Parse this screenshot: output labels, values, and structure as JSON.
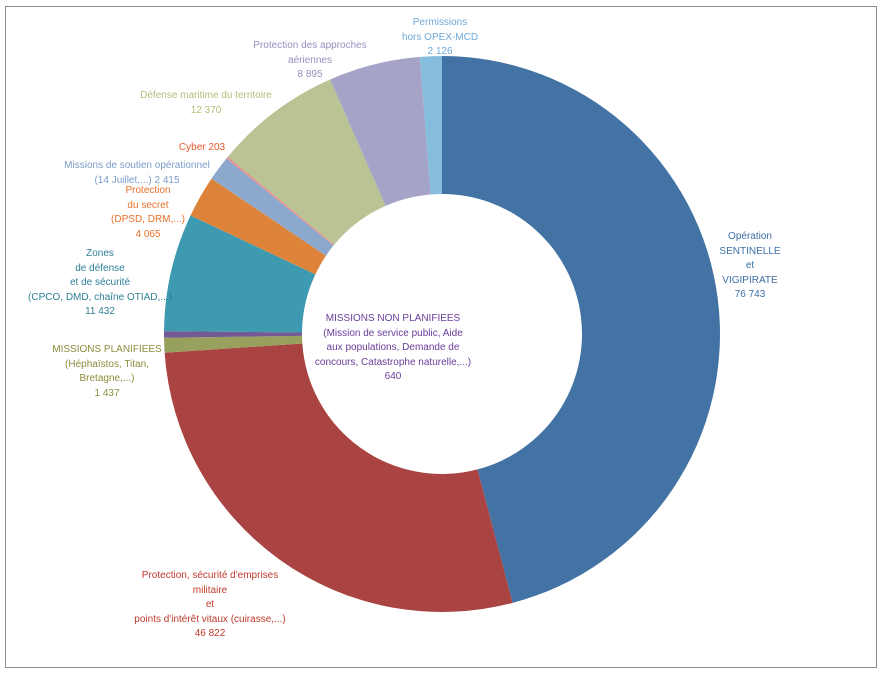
{
  "chart_data": {
    "type": "pie",
    "variant": "donut",
    "title": "",
    "legend": "none",
    "slices": [
      {
        "label": [
          "Opération",
          "SENTINELLE",
          "et",
          "VIGIPIRATE"
        ],
        "value": 76743,
        "value_text": "76 743",
        "color": "#4273A4",
        "text_color": "#3C6EA6"
      },
      {
        "label": [
          "Protection, sécurité  d'emprises",
          "militaire",
          "et",
          "points d'intérêt vitaux (cuirasse,...)"
        ],
        "value": 46822,
        "value_text": "46 822",
        "color": "#A94443",
        "text_color": "#C0392B"
      },
      {
        "label": [
          "MISSIONS PLANIFIEES",
          "(Héphaïstos, Titan,",
          "Bretagne,...)"
        ],
        "value": 1437,
        "value_text": "1 437",
        "color": "#98A05E",
        "text_color": "#8C8C3C"
      },
      {
        "label": [
          "MISSIONS NON PLANIFIEES",
          "(Mission de service public, Aide",
          "aux populations, Demande de",
          "concours, Catastrophe naturelle,...)"
        ],
        "value": 640,
        "value_text": "640",
        "color": "#735A94",
        "text_color": "#6A3D9A"
      },
      {
        "label": [
          "Zones",
          "de défense",
          "et de sécurité",
          "(CPCO, DMD, chaîne OTIAD,...)"
        ],
        "value": 11432,
        "value_text": "11 432",
        "color": "#3E9AB0",
        "text_color": "#2F7F96"
      },
      {
        "label": [
          "Protection",
          "du secret",
          "(DPSD, DRM,...)"
        ],
        "value": 4065,
        "value_text": "4 065",
        "color": "#DD843A",
        "text_color": "#E8702A"
      },
      {
        "label": [
          "Missions de soutien opérationnel",
          "(14 Juillet,...)"
        ],
        "value": 2415,
        "value_text": "2 415",
        "color": "#8CA8CC",
        "text_color": "#7A9CC8"
      },
      {
        "label": [
          "Cyber"
        ],
        "value": 203,
        "value_text": "203",
        "color": "#E79290",
        "text_color": "#E8582A"
      },
      {
        "label": [
          "Défense maritime du territoire"
        ],
        "value": 12370,
        "value_text": "12 370",
        "color": "#B9C394",
        "text_color": "#B4BE7A"
      },
      {
        "label": [
          "Protection des approches",
          "aériennes"
        ],
        "value": 8895,
        "value_text": "8 895",
        "color": "#A6A3C8",
        "text_color": "#9A8FBE"
      },
      {
        "label": [
          "Permissions",
          "hors OPEX-MCD"
        ],
        "value": 2126,
        "value_text": "2 126",
        "color": "#86BDDD",
        "text_color": "#6FA8D8"
      }
    ]
  }
}
